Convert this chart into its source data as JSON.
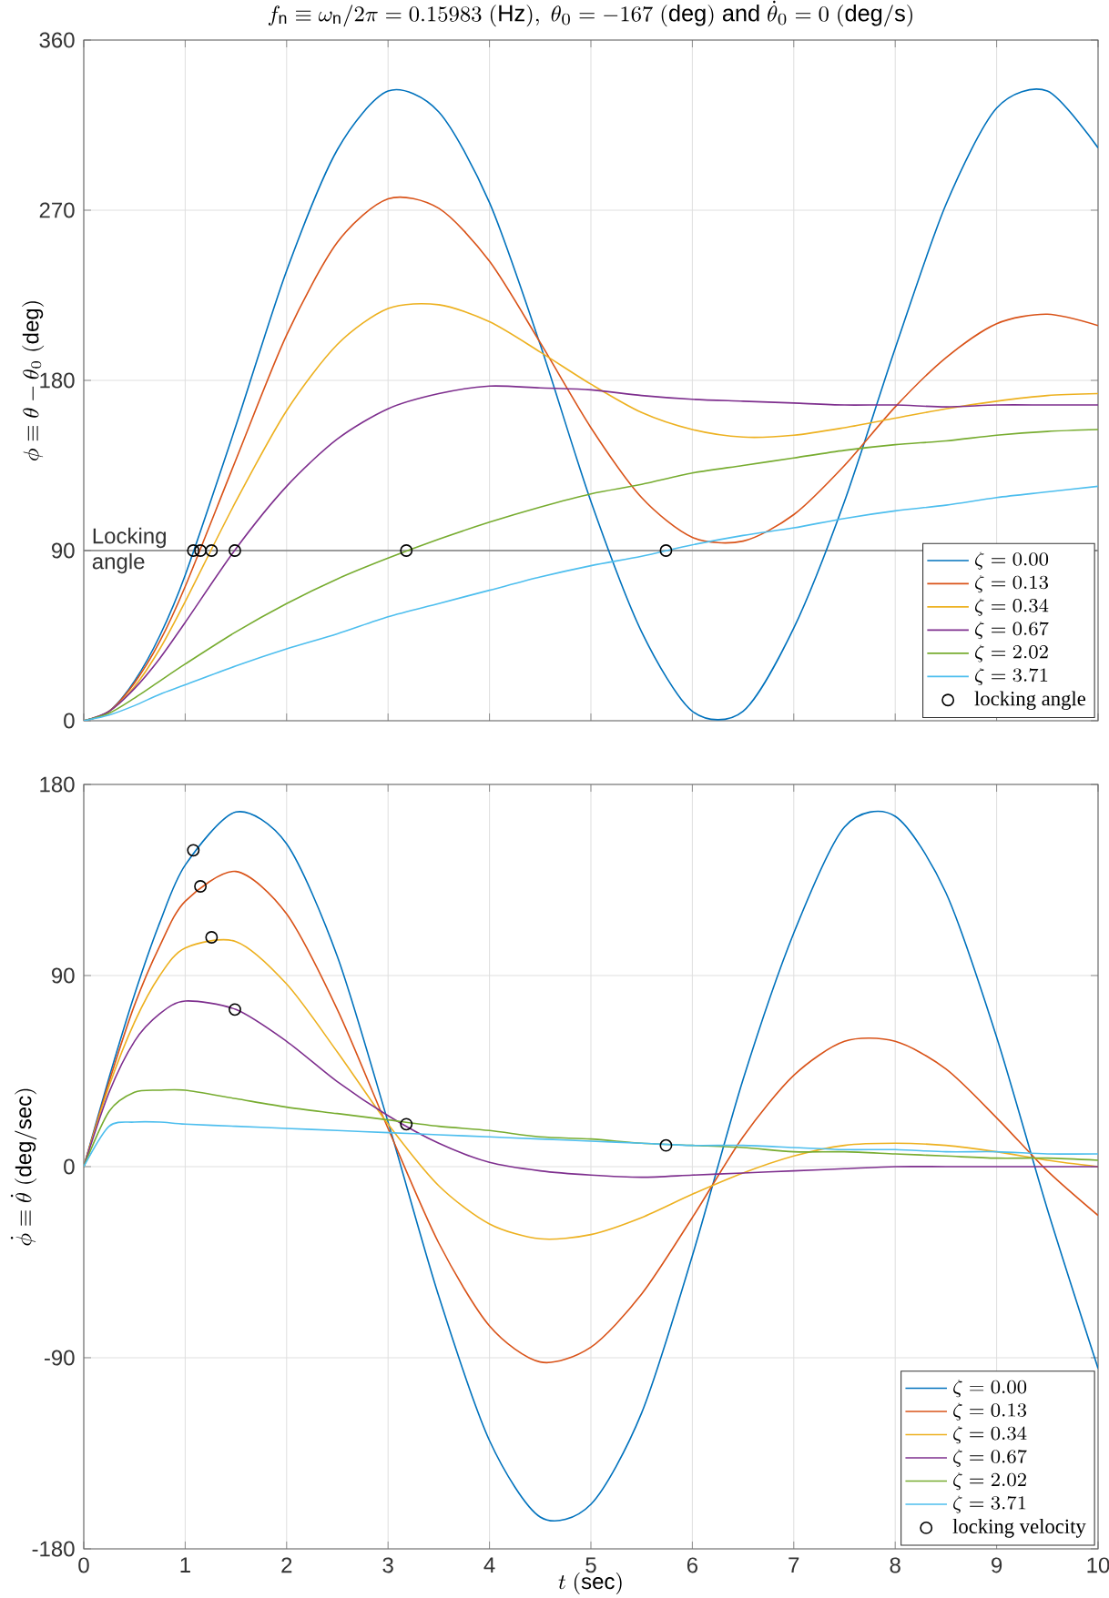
{
  "chart_data": [
    {
      "type": "line",
      "title": "f_\\mathrm{n} \\equiv \\omega_\\mathrm{n}/2\\pi = 0.15983\\ \\mathrm{(Hz)},\\ \\theta_0 = -167\\ \\mathrm{(deg)\\ and}\\ \\dot{\\theta}_0 = 0\\ \\mathrm{(deg/s)}",
      "ylabel": "\\phi \\equiv \\theta - \\theta_0\\ \\mathrm{(deg)}",
      "x": [
        0,
        0.25,
        0.5,
        0.75,
        1,
        1.5,
        2,
        2.5,
        3,
        3.5,
        4,
        4.5,
        5,
        5.5,
        6,
        6.5,
        7,
        7.5,
        8,
        8.5,
        9,
        9.5,
        10
      ],
      "series": [
        {
          "name": "\\zeta = 0.00",
          "color": "#0072bd",
          "values": [
            0,
            5,
            21,
            45,
            77,
            156,
            238,
            302,
            333,
            322,
            274,
            199,
            116,
            47,
            5,
            5,
            49,
            116,
            197,
            273,
            324,
            333,
            303
          ]
        },
        {
          "name": "\\zeta = 0.13",
          "color": "#d95319",
          "values": [
            0,
            5,
            20,
            42,
            71,
            138,
            204,
            253,
            276,
            271,
            243,
            200,
            155,
            118,
            97,
            95,
            109,
            135,
            166,
            192,
            210,
            215,
            209
          ]
        },
        {
          "name": "\\zeta = 0.34",
          "color": "#edb120",
          "values": [
            0,
            5,
            18,
            38,
            63,
            116,
            164,
            199,
            218,
            220,
            211,
            195,
            178,
            163,
            154,
            150,
            151,
            155,
            160,
            165,
            169,
            172,
            173
          ]
        },
        {
          "name": "\\zeta = 0.67",
          "color": "#7e2f8e",
          "values": [
            0,
            5,
            17,
            33,
            52,
            91,
            124,
            149,
            165,
            173,
            177,
            176,
            175,
            172,
            170,
            169,
            168,
            167,
            167,
            166,
            167,
            167,
            167
          ]
        },
        {
          "name": "\\zeta = 2.02",
          "color": "#77ac30",
          "values": [
            0,
            4,
            12,
            21,
            30,
            47,
            62,
            75,
            86,
            96,
            105,
            113,
            120,
            125,
            131,
            135,
            139,
            143,
            146,
            148,
            151,
            153,
            154
          ]
        },
        {
          "name": "\\zeta = 3.71",
          "color": "#4dbeee",
          "values": [
            0,
            3,
            8,
            14,
            19,
            29,
            38,
            46,
            55,
            62,
            69,
            76,
            82,
            87,
            93,
            98,
            102,
            107,
            111,
            114,
            118,
            121,
            124
          ]
        },
        {
          "name": "locking angle",
          "type": "scatter",
          "marker": "circle",
          "color": "#000000",
          "x": [
            1.08,
            1.15,
            1.26,
            1.49,
            3.18,
            5.74
          ],
          "values": [
            90,
            90,
            90,
            90,
            90,
            90
          ]
        }
      ],
      "ref_lines": [
        {
          "axis": "y",
          "value": 90,
          "label": "Locking angle",
          "color": "#7f7f7f"
        }
      ],
      "xlim": [
        0,
        10
      ],
      "xticks": [
        0,
        1,
        2,
        3,
        4,
        5,
        6,
        7,
        8,
        9,
        10
      ],
      "ylim": [
        0,
        360
      ],
      "yticks": [
        0,
        90,
        180,
        270,
        360
      ],
      "tick_labels": "y",
      "grid": true,
      "legend": "bottom right"
    },
    {
      "type": "line",
      "xlabel": "t\\ \\mathrm{(sec)}",
      "ylabel": "\\dot{\\phi} \\equiv \\dot{\\theta}\\ \\mathrm{(deg/sec)}",
      "x": [
        0,
        0.25,
        0.5,
        0.75,
        1,
        1.5,
        2,
        2.5,
        3,
        3.5,
        4,
        4.5,
        5,
        5.5,
        6,
        6.5,
        7,
        7.5,
        8,
        8.5,
        9,
        9.5,
        10
      ],
      "series": [
        {
          "name": "\\zeta = 0.00",
          "color": "#0072bd",
          "values": [
            0,
            42,
            81,
            115,
            142,
            167,
            152,
            99,
            21,
            -61,
            -129,
            -165,
            -159,
            -116,
            -42,
            41,
            110,
            160,
            165,
            129,
            61,
            -20,
            -95
          ]
        },
        {
          "name": "\\zeta = 0.13",
          "color": "#d95319",
          "values": [
            0,
            40,
            76,
            104,
            125,
            139,
            119,
            74,
            18,
            -36,
            -75,
            -92,
            -85,
            -60,
            -24,
            14,
            43,
            59,
            59,
            46,
            23,
            -2,
            -23
          ]
        },
        {
          "name": "\\zeta = 0.34",
          "color": "#edb120",
          "values": [
            0,
            38,
            68,
            90,
            103,
            106,
            86,
            54,
            20,
            -9,
            -27,
            -34,
            -32,
            -24,
            -13,
            -3,
            5,
            10,
            11,
            10,
            7,
            3,
            0
          ]
        },
        {
          "name": "\\zeta = 0.67",
          "color": "#7e2f8e",
          "values": [
            0,
            35,
            59,
            72,
            78,
            74,
            59,
            40,
            24,
            11,
            2,
            -2,
            -4,
            -5,
            -4,
            -3,
            -2,
            -1,
            0,
            0,
            0,
            0,
            0
          ]
        },
        {
          "name": "\\zeta = 2.02",
          "color": "#77ac30",
          "values": [
            0,
            26,
            35,
            36,
            36,
            32,
            28,
            25,
            22,
            19,
            17,
            14,
            13,
            11,
            10,
            9,
            7,
            7,
            6,
            5,
            4,
            4,
            3
          ]
        },
        {
          "name": "\\zeta = 3.71",
          "color": "#4dbeee",
          "values": [
            0,
            19,
            21,
            21,
            20,
            19,
            18,
            17,
            16,
            15,
            14,
            13,
            12,
            11,
            10,
            10,
            9,
            8,
            8,
            7,
            7,
            6,
            6
          ]
        },
        {
          "name": "locking velocity",
          "type": "scatter",
          "marker": "circle",
          "color": "#000000",
          "x": [
            1.08,
            1.15,
            1.26,
            1.49,
            3.18,
            5.74
          ],
          "values": [
            149,
            132,
            108,
            74,
            20,
            10
          ]
        }
      ],
      "xlim": [
        0,
        10
      ],
      "xticks": [
        0,
        1,
        2,
        3,
        4,
        5,
        6,
        7,
        8,
        9,
        10
      ],
      "ylim": [
        -180,
        180
      ],
      "yticks": [
        -180,
        -90,
        0,
        90,
        180
      ],
      "grid": true,
      "legend": "bottom right"
    }
  ]
}
